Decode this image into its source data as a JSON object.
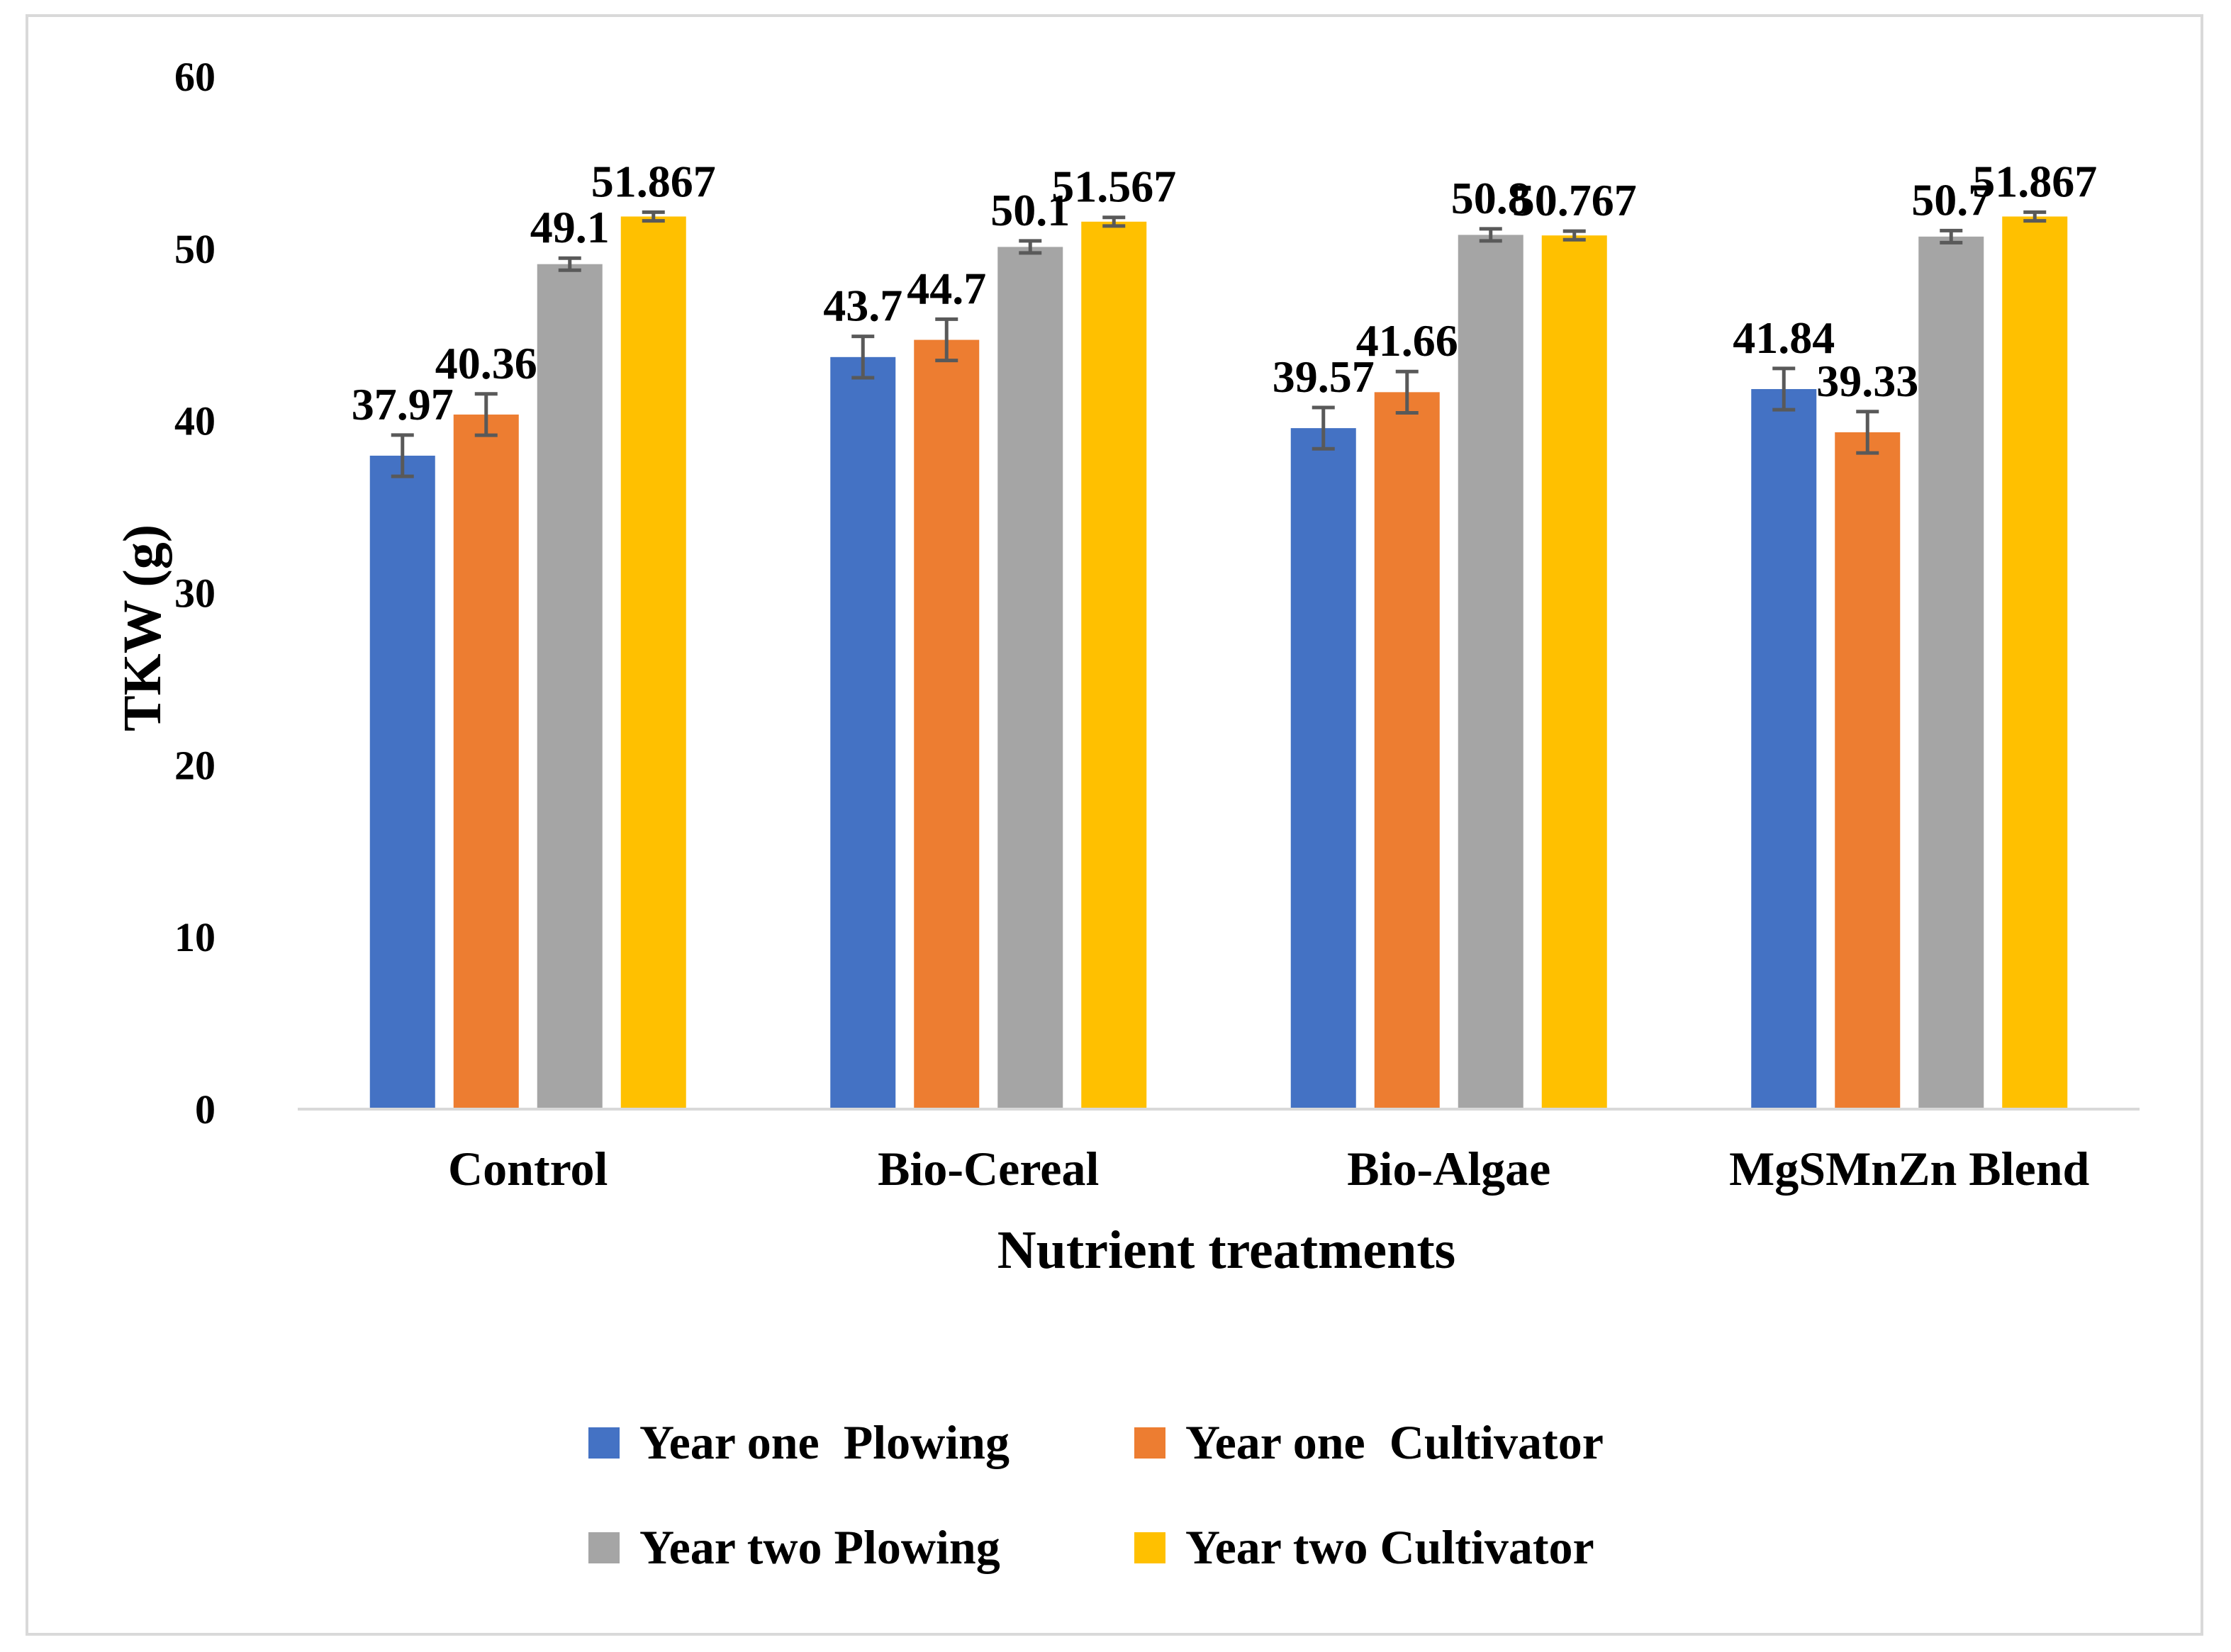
{
  "chart_data": {
    "type": "bar",
    "title": "",
    "xlabel": "Nutrient treatments",
    "ylabel": "TKW (g)",
    "ylim": [
      0,
      60
    ],
    "yticks": [
      0,
      10,
      20,
      30,
      40,
      50,
      60
    ],
    "ytick_labels": [
      "0",
      "10",
      "20",
      "30",
      "40",
      "50",
      "60"
    ],
    "grid": false,
    "legend_position": "bottom",
    "categories": [
      "Control",
      "Bio-Cereal",
      "Bio-Algae",
      "MgSMnZn Blend"
    ],
    "series": [
      {
        "name": "Year one  Plowing",
        "color": "#4472c4",
        "values": [
          37.97,
          43.7,
          39.57,
          41.84
        ],
        "labels": [
          "37.97",
          "43.7",
          "39.57",
          "41.84"
        ],
        "errors": [
          1.2,
          1.2,
          1.2,
          1.2
        ]
      },
      {
        "name": "Year one  Cultivator",
        "color": "#ed7d31",
        "values": [
          40.36,
          44.7,
          41.66,
          39.33
        ],
        "labels": [
          "40.36",
          "44.7",
          "41.66",
          "39.33"
        ],
        "errors": [
          1.2,
          1.2,
          1.2,
          1.2
        ]
      },
      {
        "name": "Year two Plowing",
        "color": "#a5a5a5",
        "values": [
          49.1,
          50.1,
          50.8,
          50.7
        ],
        "labels": [
          "49.1",
          "50.1",
          "50.8",
          "50.7"
        ],
        "errors": [
          0.35,
          0.35,
          0.35,
          0.35
        ]
      },
      {
        "name": "Year two Cultivator",
        "color": "#ffc000",
        "values": [
          51.867,
          51.567,
          50.767,
          51.867
        ],
        "labels": [
          "51.867",
          "51.567",
          "50.767",
          "51.867"
        ],
        "errors": [
          0.25,
          0.25,
          0.25,
          0.25
        ]
      }
    ]
  }
}
